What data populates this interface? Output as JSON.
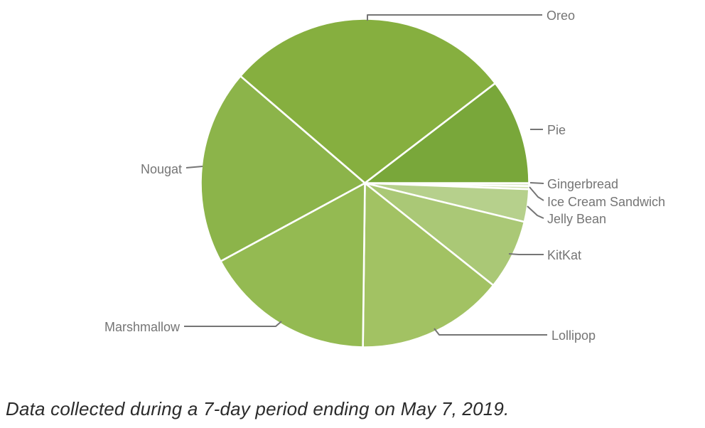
{
  "page": {
    "background_color": "#ffffff"
  },
  "caption": {
    "text": "Data collected during a 7-day period ending on May 7, 2019."
  },
  "chart_data": {
    "type": "pie",
    "start_angle_deg_from_3oclock": 0,
    "direction": "clockwise",
    "grid": false,
    "legend": "leader-line labels around pie",
    "slice_divider_color": "#ffffff",
    "leader_line_color": "#757575",
    "label_text_color": "#757575",
    "slices": [
      {
        "label": "Gingerbread",
        "value_pct": 0.3,
        "color": "#dce9c8"
      },
      {
        "label": "Ice Cream Sandwich",
        "value_pct": 0.3,
        "color": "#cfe0ad"
      },
      {
        "label": "Jelly Bean",
        "value_pct": 3.2,
        "color": "#b6d08c"
      },
      {
        "label": "KitKat",
        "value_pct": 6.9,
        "color": "#aac876"
      },
      {
        "label": "Lollipop",
        "value_pct": 14.5,
        "color": "#a2c263"
      },
      {
        "label": "Marshmallow",
        "value_pct": 16.9,
        "color": "#94ba52"
      },
      {
        "label": "Nougat",
        "value_pct": 19.2,
        "color": "#8cb44a"
      },
      {
        "label": "Oreo",
        "value_pct": 28.3,
        "color": "#86af3f"
      },
      {
        "label": "Pie",
        "value_pct": 10.4,
        "color": "#79a73a"
      }
    ]
  }
}
